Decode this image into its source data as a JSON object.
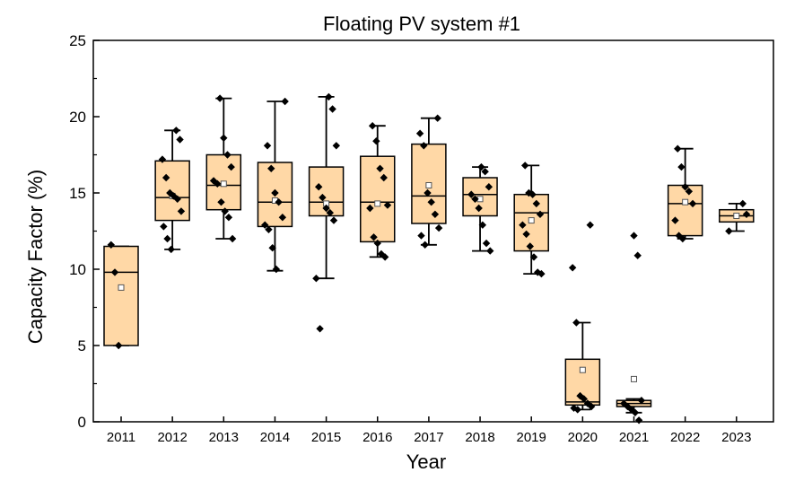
{
  "chart_data": {
    "type": "box",
    "title": "Floating PV system #1",
    "xlabel": "Year",
    "ylabel": "Capacity Factor (%)",
    "ylim": [
      0,
      25
    ],
    "yticks": [
      0,
      5,
      10,
      15,
      20,
      25
    ],
    "categories": [
      "2011",
      "2012",
      "2013",
      "2014",
      "2015",
      "2016",
      "2017",
      "2018",
      "2019",
      "2020",
      "2021",
      "2022",
      "2023"
    ],
    "box_color": "#FFD8A6",
    "point_color": "#000000",
    "boxes": [
      {
        "q1": 5.0,
        "median": 9.8,
        "q3": 11.5,
        "whisker_low": 5.0,
        "whisker_high": 11.5,
        "mean": 8.8,
        "points": [
          11.6,
          9.8,
          5.0
        ]
      },
      {
        "q1": 13.2,
        "median": 14.7,
        "q3": 17.1,
        "whisker_low": 11.3,
        "whisker_high": 19.1,
        "mean": 14.8,
        "points": [
          19.1,
          18.5,
          17.2,
          16.0,
          15.0,
          14.8,
          14.6,
          13.8,
          12.8,
          12.0,
          11.3
        ]
      },
      {
        "q1": 13.9,
        "median": 15.5,
        "q3": 17.5,
        "whisker_low": 12.0,
        "whisker_high": 21.2,
        "mean": 15.6,
        "points": [
          21.2,
          18.6,
          17.5,
          16.7,
          15.8,
          15.6,
          14.4,
          13.8,
          13.4,
          12.0
        ]
      },
      {
        "q1": 12.8,
        "median": 14.4,
        "q3": 17.0,
        "whisker_low": 9.9,
        "whisker_high": 21.0,
        "mean": 14.5,
        "points": [
          21.0,
          18.1,
          16.6,
          15.0,
          14.4,
          13.4,
          12.9,
          12.6,
          11.4,
          10.0
        ]
      },
      {
        "q1": 13.5,
        "median": 14.4,
        "q3": 16.7,
        "whisker_low": 9.4,
        "whisker_high": 21.3,
        "mean": 14.3,
        "points": [
          21.3,
          20.5,
          18.1,
          15.4,
          14.7,
          14.0,
          13.7,
          13.2,
          9.4,
          6.1
        ]
      },
      {
        "q1": 11.8,
        "median": 14.4,
        "q3": 17.4,
        "whisker_low": 10.8,
        "whisker_high": 19.4,
        "mean": 14.3,
        "points": [
          19.4,
          18.4,
          16.6,
          16.0,
          14.2,
          14.0,
          12.1,
          11.7,
          11.0,
          10.8
        ]
      },
      {
        "q1": 13.0,
        "median": 14.8,
        "q3": 18.2,
        "whisker_low": 11.6,
        "whisker_high": 19.9,
        "mean": 15.5,
        "points": [
          19.9,
          18.9,
          18.1,
          15.0,
          14.4,
          13.6,
          12.7,
          12.2,
          11.6
        ]
      },
      {
        "q1": 13.5,
        "median": 14.9,
        "q3": 16.0,
        "whisker_low": 11.2,
        "whisker_high": 16.7,
        "mean": 14.6,
        "points": [
          16.7,
          16.4,
          15.4,
          14.9,
          14.6,
          14.0,
          12.9,
          11.7,
          11.2
        ]
      },
      {
        "q1": 11.2,
        "median": 13.7,
        "q3": 14.9,
        "whisker_low": 9.7,
        "whisker_high": 16.8,
        "mean": 13.2,
        "points": [
          16.8,
          15.0,
          14.9,
          14.3,
          13.6,
          12.9,
          12.3,
          11.5,
          10.8,
          9.8,
          9.7
        ]
      },
      {
        "q1": 1.1,
        "median": 1.3,
        "q3": 4.1,
        "whisker_low": 0.8,
        "whisker_high": 6.5,
        "mean": 3.4,
        "points": [
          12.9,
          10.1,
          6.5,
          1.7,
          1.5,
          1.2,
          1.0,
          0.9,
          0.8
        ]
      },
      {
        "q1": 1.0,
        "median": 1.2,
        "q3": 1.4,
        "whisker_low": 0.6,
        "whisker_high": 1.5,
        "mean": 2.8,
        "points": [
          12.2,
          10.9,
          1.4,
          1.2,
          1.0,
          0.8,
          0.6,
          0.1
        ]
      },
      {
        "q1": 12.2,
        "median": 14.3,
        "q3": 15.5,
        "whisker_low": 12.0,
        "whisker_high": 17.9,
        "mean": 14.4,
        "points": [
          17.9,
          16.7,
          15.4,
          15.1,
          14.3,
          13.2,
          12.2,
          12.0
        ]
      },
      {
        "q1": 13.1,
        "median": 13.5,
        "q3": 13.9,
        "whisker_low": 12.5,
        "whisker_high": 14.3,
        "mean": 13.5,
        "points": [
          14.3,
          13.6,
          12.5
        ]
      }
    ]
  }
}
